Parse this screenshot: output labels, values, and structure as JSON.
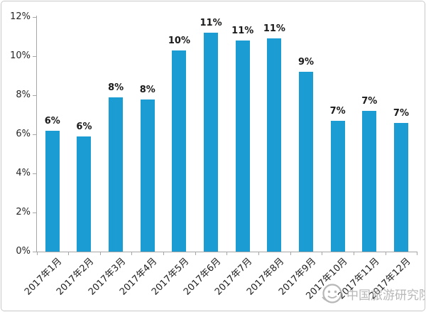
{
  "chart_data": {
    "type": "bar",
    "title": "",
    "xlabel": "",
    "ylabel": "",
    "categories": [
      "2017年1月",
      "2017年2月",
      "2017年3月",
      "2017年4月",
      "2017年5月",
      "2017年6月",
      "2017年7月",
      "2017年8月",
      "2017年9月",
      "2017年10月",
      "2017年11月",
      "2017年12月"
    ],
    "values": [
      6.2,
      5.9,
      7.9,
      7.8,
      10.3,
      11.2,
      10.8,
      10.9,
      9.2,
      6.7,
      7.2,
      6.6
    ],
    "bar_labels": [
      "6%",
      "6%",
      "8%",
      "8%",
      "10%",
      "11%",
      "11%",
      "11%",
      "9%",
      "7%",
      "7%",
      "7%"
    ],
    "ylim": [
      0,
      12
    ],
    "ytick_step": 2,
    "ytick_labels": [
      "0%",
      "2%",
      "4%",
      "6%",
      "8%",
      "10%",
      "12%"
    ],
    "grid": false,
    "legend_position": "none",
    "bar_color": "#1b9dd3",
    "axis_color": "#a6a6a6",
    "label_color": "#1a1a1a"
  },
  "watermark": {
    "logo_icon": "china-tourism-academy-logo",
    "text": "中国旅游研究院",
    "color": "#ababab"
  }
}
